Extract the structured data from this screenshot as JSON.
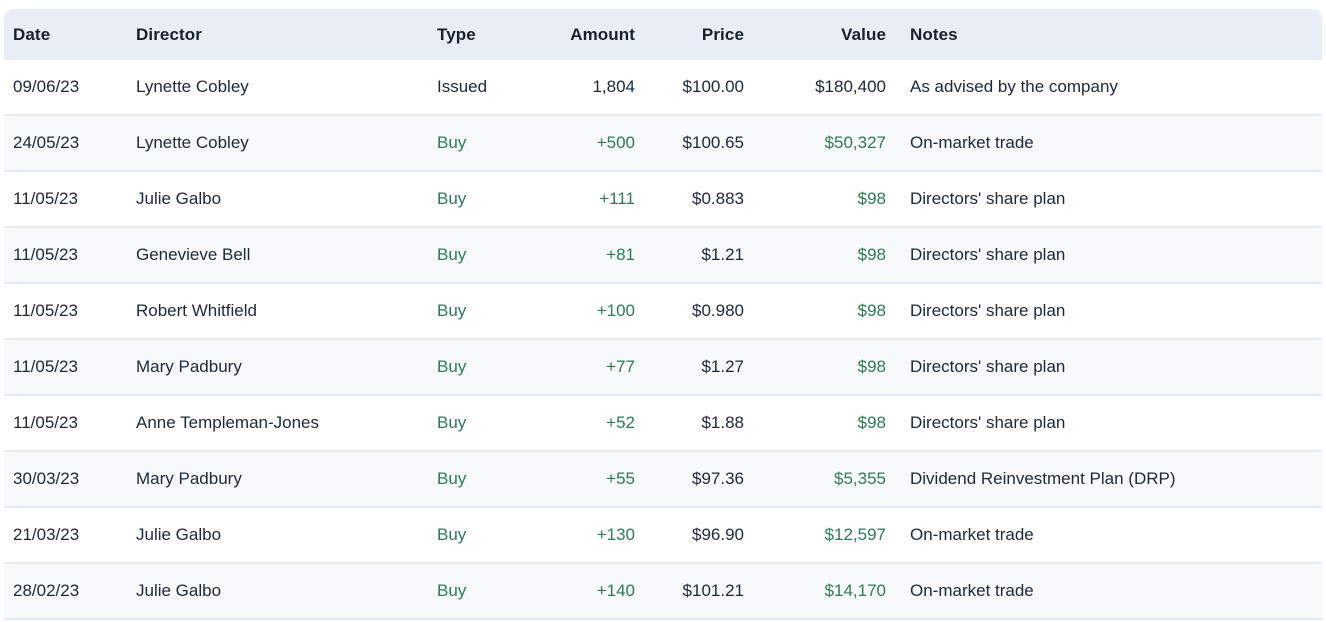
{
  "table": {
    "columns": [
      {
        "key": "date",
        "label": "Date"
      },
      {
        "key": "director",
        "label": "Director"
      },
      {
        "key": "type",
        "label": "Type"
      },
      {
        "key": "amount",
        "label": "Amount"
      },
      {
        "key": "price",
        "label": "Price"
      },
      {
        "key": "value",
        "label": "Value"
      },
      {
        "key": "notes",
        "label": "Notes"
      }
    ],
    "rows": [
      {
        "date": "09/06/23",
        "director": "Lynette Cobley",
        "type": "Issued",
        "amount": "1,804",
        "price": "$100.00",
        "value": "$180,400",
        "notes": "As advised by the company",
        "positive": false
      },
      {
        "date": "24/05/23",
        "director": "Lynette Cobley",
        "type": "Buy",
        "amount": "+500",
        "price": "$100.65",
        "value": "$50,327",
        "notes": "On-market trade",
        "positive": true
      },
      {
        "date": "11/05/23",
        "director": "Julie Galbo",
        "type": "Buy",
        "amount": "+111",
        "price": "$0.883",
        "value": "$98",
        "notes": "Directors' share plan",
        "positive": true
      },
      {
        "date": "11/05/23",
        "director": "Genevieve Bell",
        "type": "Buy",
        "amount": "+81",
        "price": "$1.21",
        "value": "$98",
        "notes": "Directors' share plan",
        "positive": true
      },
      {
        "date": "11/05/23",
        "director": "Robert Whitfield",
        "type": "Buy",
        "amount": "+100",
        "price": "$0.980",
        "value": "$98",
        "notes": "Directors' share plan",
        "positive": true
      },
      {
        "date": "11/05/23",
        "director": "Mary Padbury",
        "type": "Buy",
        "amount": "+77",
        "price": "$1.27",
        "value": "$98",
        "notes": "Directors' share plan",
        "positive": true
      },
      {
        "date": "11/05/23",
        "director": "Anne Templeman-Jones",
        "type": "Buy",
        "amount": "+52",
        "price": "$1.88",
        "value": "$98",
        "notes": "Directors' share plan",
        "positive": true
      },
      {
        "date": "30/03/23",
        "director": "Mary Padbury",
        "type": "Buy",
        "amount": "+55",
        "price": "$97.36",
        "value": "$5,355",
        "notes": "Dividend Reinvestment Plan (DRP)",
        "positive": true
      },
      {
        "date": "21/03/23",
        "director": "Julie Galbo",
        "type": "Buy",
        "amount": "+130",
        "price": "$96.90",
        "value": "$12,597",
        "notes": "On-market trade",
        "positive": true
      },
      {
        "date": "28/02/23",
        "director": "Julie Galbo",
        "type": "Buy",
        "amount": "+140",
        "price": "$101.21",
        "value": "$14,170",
        "notes": "On-market trade",
        "positive": true
      }
    ],
    "colors": {
      "positive": "#2f7a57",
      "row_text": "#1d2838",
      "header_text": "#16202e",
      "header_bg": "#e8edf6",
      "stripe_bg": "#f8f9fb",
      "row_border": "#e2eaf5"
    }
  }
}
